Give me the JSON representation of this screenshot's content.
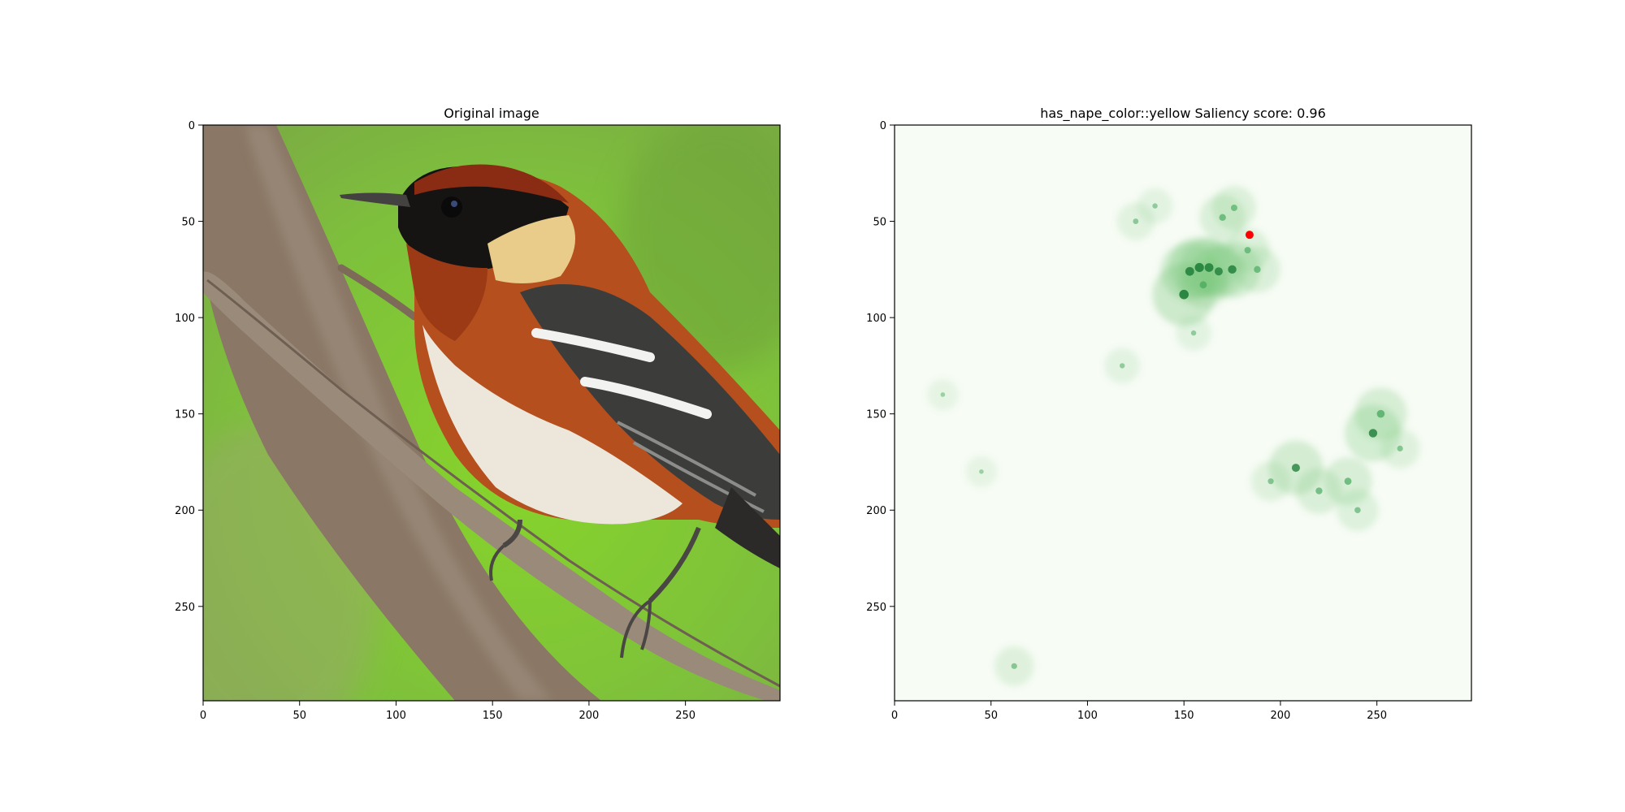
{
  "chart_data": [
    {
      "type": "image",
      "title": "Original image",
      "xlim": [
        0,
        299
      ],
      "ylim": [
        299,
        0
      ],
      "xticks": [
        0,
        50,
        100,
        150,
        200,
        250
      ],
      "yticks": [
        0,
        50,
        100,
        150,
        200,
        250
      ],
      "content": "photograph of a bird perched on a branch",
      "colors": {
        "background": "#7fc23c",
        "branch": "#8f7a67",
        "head": "#161412",
        "cap": "#8a2c14",
        "neck_patch": "#e9cc8a",
        "breast": "#b8521f",
        "belly": "#ede8dc",
        "wing": "#3d3e3c"
      }
    },
    {
      "type": "heatmap",
      "title": "has_nape_color::yellow Saliency score: 0.96",
      "colormap": "Greens",
      "xlim": [
        0,
        299
      ],
      "ylim": [
        299,
        0
      ],
      "xticks": [
        0,
        50,
        100,
        150,
        200,
        250
      ],
      "yticks": [
        0,
        50,
        100,
        150,
        200,
        250
      ],
      "marker": {
        "x": 184,
        "y": 57,
        "color": "#ff0000"
      },
      "hotspots": [
        {
          "x": 150,
          "y": 88,
          "intensity": 0.95
        },
        {
          "x": 153,
          "y": 76,
          "intensity": 0.85
        },
        {
          "x": 158,
          "y": 74,
          "intensity": 0.9
        },
        {
          "x": 163,
          "y": 74,
          "intensity": 0.85
        },
        {
          "x": 168,
          "y": 76,
          "intensity": 0.75
        },
        {
          "x": 175,
          "y": 75,
          "intensity": 0.8
        },
        {
          "x": 160,
          "y": 83,
          "intensity": 0.6
        },
        {
          "x": 170,
          "y": 48,
          "intensity": 0.55
        },
        {
          "x": 176,
          "y": 43,
          "intensity": 0.5
        },
        {
          "x": 183,
          "y": 65,
          "intensity": 0.5
        },
        {
          "x": 188,
          "y": 75,
          "intensity": 0.55
        },
        {
          "x": 125,
          "y": 50,
          "intensity": 0.35
        },
        {
          "x": 135,
          "y": 42,
          "intensity": 0.3
        },
        {
          "x": 155,
          "y": 108,
          "intensity": 0.3
        },
        {
          "x": 118,
          "y": 125,
          "intensity": 0.3
        },
        {
          "x": 248,
          "y": 160,
          "intensity": 0.8
        },
        {
          "x": 252,
          "y": 150,
          "intensity": 0.7
        },
        {
          "x": 262,
          "y": 168,
          "intensity": 0.4
        },
        {
          "x": 208,
          "y": 178,
          "intensity": 0.75
        },
        {
          "x": 220,
          "y": 190,
          "intensity": 0.55
        },
        {
          "x": 235,
          "y": 185,
          "intensity": 0.6
        },
        {
          "x": 240,
          "y": 200,
          "intensity": 0.45
        },
        {
          "x": 195,
          "y": 185,
          "intensity": 0.4
        },
        {
          "x": 62,
          "y": 281,
          "intensity": 0.4
        },
        {
          "x": 45,
          "y": 180,
          "intensity": 0.2
        },
        {
          "x": 25,
          "y": 140,
          "intensity": 0.2
        }
      ]
    }
  ]
}
